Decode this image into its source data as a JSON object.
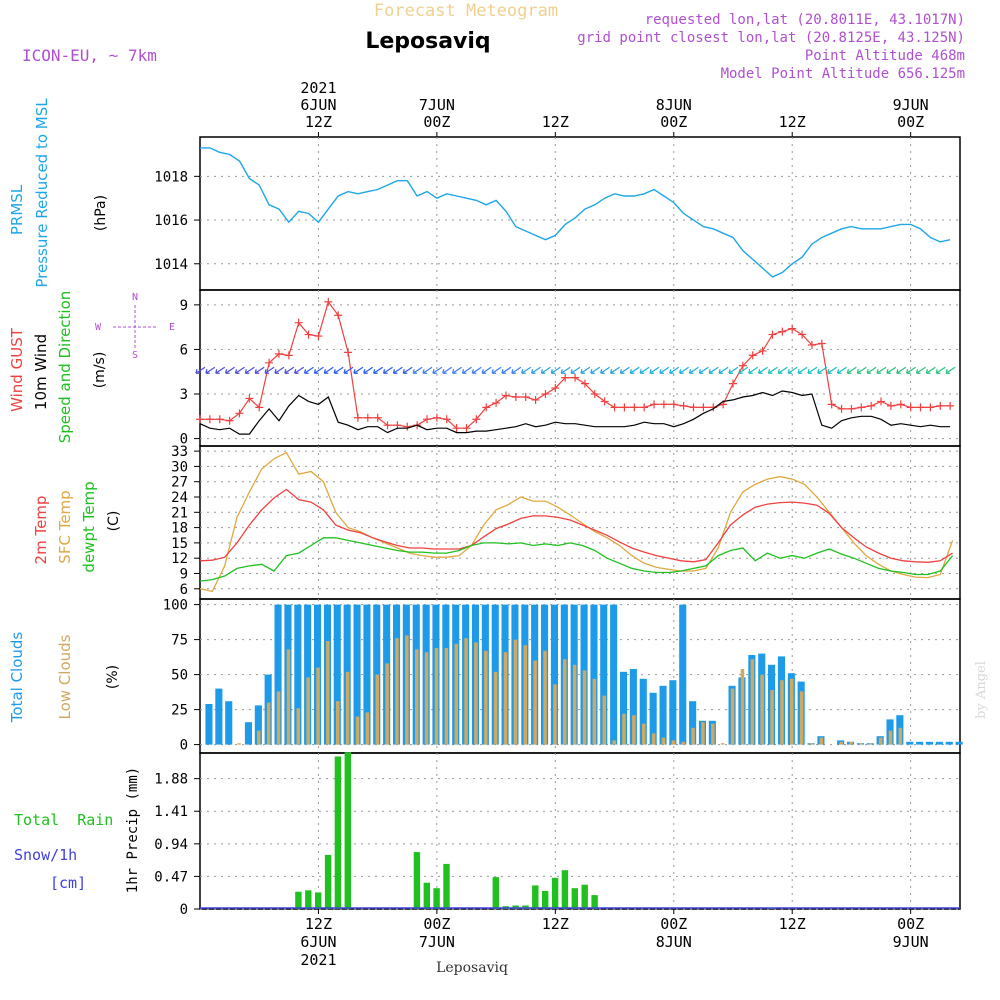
{
  "header": {
    "title": "Forecast Meteogram",
    "location": "Leposaviq",
    "model": "ICON-EU, ~ 7km",
    "requested": "requested lon,lat (20.8011E, 43.1017N)",
    "gridpoint": "grid point closest lon,lat (20.8125E, 43.125N)",
    "point_alt": "Point Altitude 468m",
    "model_alt": "Model Point Altitude 656.125m",
    "credit": "by Angel",
    "bottom_label": "Leposaviq"
  },
  "time_axis": {
    "top_labels": [
      {
        "line1": "2021",
        "line2": "6JUN",
        "line3": "12Z",
        "hour": 12
      },
      {
        "line1": "",
        "line2": "7JUN",
        "line3": "00Z",
        "hour": 24
      },
      {
        "line1": "",
        "line2": "",
        "line3": "12Z",
        "hour": 36
      },
      {
        "line1": "",
        "line2": "8JUN",
        "line3": "00Z",
        "hour": 48
      },
      {
        "line1": "",
        "line2": "",
        "line3": "12Z",
        "hour": 60
      },
      {
        "line1": "",
        "line2": "9JUN",
        "line3": "00Z",
        "hour": 72
      }
    ],
    "bottom_labels": [
      {
        "line1": "12Z",
        "line2": "6JUN",
        "line3": "2021",
        "hour": 12
      },
      {
        "line1": "00Z",
        "line2": "7JUN",
        "line3": "",
        "hour": 24
      },
      {
        "line1": "12Z",
        "line2": "",
        "line3": "",
        "hour": 36
      },
      {
        "line1": "00Z",
        "line2": "8JUN",
        "line3": "",
        "hour": 48
      },
      {
        "line1": "12Z",
        "line2": "",
        "line3": "",
        "hour": 60
      },
      {
        "line1": "00Z",
        "line2": "9JUN",
        "line3": "",
        "hour": 72
      }
    ],
    "start_hour": 0,
    "end_hour": 77
  },
  "labels": {
    "p1_a": "PRMSL",
    "p1_b": "Pressure Reduced to MSL",
    "p1_unit": "(hPa)",
    "p2_a": "Wind GUST",
    "p2_b": "10m Wind",
    "p2_c": "Speed and Direction",
    "p2_unit": "(m/s)",
    "compass_n": "N",
    "compass_s": "S",
    "compass_w": "W",
    "compass_e": "E",
    "p3_a": "2m Temp",
    "p3_b": "SFC Temp",
    "p3_c": "dewpt Temp",
    "p3_unit": "(C)",
    "p4_a": "Total Clouds",
    "p4_b": "Low Clouds",
    "p4_unit": "(%)",
    "p5_a": "Total  Rain",
    "p5_b": "Snow/1h",
    "p5_c": "[cm]",
    "p5_unit": "1hr Precip (mm)"
  },
  "colors": {
    "pressure": "#1ea6e8",
    "gust": "#f04040",
    "wind": "#000000",
    "t2m": "#f04040",
    "sfc": "#e0a840",
    "dew": "#20c020",
    "total_cloud": "#1e9be8",
    "low_cloud": "#d0a860",
    "rain": "#20c020",
    "snow": "#4040e0",
    "title": "#f0d090",
    "meta": "#b050d0"
  },
  "chart_data": [
    {
      "type": "line",
      "name": "PRMSL",
      "yticks": [
        1014,
        1016,
        1018
      ],
      "ylim": [
        1012.8,
        1019.8
      ],
      "x_hours": [
        0,
        1,
        2,
        3,
        4,
        5,
        6,
        7,
        8,
        9,
        10,
        11,
        12,
        13,
        14,
        15,
        16,
        17,
        18,
        19,
        20,
        21,
        22,
        23,
        24,
        25,
        26,
        27,
        28,
        29,
        30,
        31,
        32,
        33,
        34,
        35,
        36,
        37,
        38,
        39,
        40,
        41,
        42,
        43,
        44,
        45,
        46,
        47,
        48,
        49,
        50,
        51,
        52,
        53,
        54,
        55,
        56,
        57,
        58,
        59,
        60,
        61,
        62,
        63,
        64,
        65,
        66,
        67,
        68,
        69,
        70,
        71,
        72,
        73,
        74,
        75,
        76
      ],
      "values": [
        1019.3,
        1019.3,
        1019.1,
        1019.0,
        1018.7,
        1017.9,
        1017.6,
        1016.7,
        1016.5,
        1015.9,
        1016.4,
        1016.3,
        1015.9,
        1016.5,
        1017.1,
        1017.3,
        1017.2,
        1017.3,
        1017.4,
        1017.6,
        1017.8,
        1017.8,
        1017.1,
        1017.3,
        1017.0,
        1017.2,
        1017.1,
        1017.0,
        1016.9,
        1016.7,
        1016.9,
        1016.4,
        1015.7,
        1015.5,
        1015.3,
        1015.1,
        1015.3,
        1015.8,
        1016.1,
        1016.5,
        1016.7,
        1017.0,
        1017.2,
        1017.1,
        1017.1,
        1017.2,
        1017.4,
        1017.1,
        1016.8,
        1016.3,
        1016.0,
        1015.7,
        1015.6,
        1015.4,
        1015.2,
        1014.6,
        1014.2,
        1013.8,
        1013.4,
        1013.6,
        1014.0,
        1014.3,
        1014.9,
        1015.2,
        1015.4,
        1015.6,
        1015.7,
        1015.6,
        1015.6,
        1015.6,
        1015.7,
        1015.8,
        1015.8,
        1015.6,
        1015.2,
        1015.0,
        1015.1
      ]
    },
    {
      "type": "line",
      "name": "Wind",
      "yticks": [
        0,
        3,
        6,
        9
      ],
      "ylim": [
        -0.5,
        10
      ],
      "x_hours": [
        0,
        1,
        2,
        3,
        4,
        5,
        6,
        7,
        8,
        9,
        10,
        11,
        12,
        13,
        14,
        15,
        16,
        17,
        18,
        19,
        20,
        21,
        22,
        23,
        24,
        25,
        26,
        27,
        28,
        29,
        30,
        31,
        32,
        33,
        34,
        35,
        36,
        37,
        38,
        39,
        40,
        41,
        42,
        43,
        44,
        45,
        46,
        47,
        48,
        49,
        50,
        51,
        52,
        53,
        54,
        55,
        56,
        57,
        58,
        59,
        60,
        61,
        62,
        63,
        64,
        65,
        66,
        67,
        68,
        69,
        70,
        71,
        72,
        73,
        74,
        75,
        76
      ],
      "gust": [
        1.3,
        1.3,
        1.3,
        1.2,
        1.7,
        2.7,
        2.1,
        5.1,
        5.7,
        5.6,
        7.8,
        7.0,
        6.9,
        9.2,
        8.3,
        5.8,
        1.4,
        1.4,
        1.4,
        0.9,
        0.9,
        0.8,
        0.9,
        1.3,
        1.4,
        1.3,
        0.7,
        0.7,
        1.3,
        2.1,
        2.4,
        2.9,
        2.8,
        2.8,
        2.6,
        3.0,
        3.4,
        4.1,
        4.1,
        3.7,
        3.0,
        2.5,
        2.1,
        2.1,
        2.1,
        2.1,
        2.3,
        2.3,
        2.3,
        2.2,
        2.1,
        2.1,
        2.1,
        2.3,
        3.7,
        4.9,
        5.6,
        5.9,
        7.0,
        7.2,
        7.4,
        7.0,
        6.3,
        6.4,
        2.3,
        2.0,
        2.0,
        2.1,
        2.2,
        2.5,
        2.2,
        2.3,
        2.1,
        2.1,
        2.1,
        2.2,
        2.2
      ],
      "wind": [
        1.0,
        0.7,
        0.6,
        0.7,
        0.3,
        0.3,
        1.2,
        2.0,
        1.2,
        2.2,
        2.9,
        2.5,
        2.3,
        2.8,
        1.1,
        0.9,
        0.6,
        0.8,
        0.8,
        0.4,
        0.7,
        0.7,
        0.9,
        0.6,
        0.7,
        0.7,
        0.4,
        0.4,
        0.5,
        0.5,
        0.6,
        0.7,
        0.8,
        1.0,
        0.8,
        0.9,
        1.1,
        1.0,
        1.0,
        0.9,
        0.8,
        0.8,
        0.8,
        0.8,
        0.9,
        1.1,
        1.0,
        1.0,
        0.8,
        1.0,
        1.3,
        1.7,
        2.0,
        2.5,
        2.6,
        2.8,
        2.9,
        3.1,
        2.9,
        3.2,
        3.1,
        2.9,
        3.0,
        0.9,
        0.7,
        1.2,
        1.4,
        1.5,
        1.5,
        1.3,
        0.9,
        1.0,
        0.9,
        0.8,
        0.9,
        0.8,
        0.8
      ]
    },
    {
      "type": "line",
      "name": "Temperature",
      "yticks": [
        6,
        9,
        12,
        15,
        18,
        21,
        24,
        27,
        30,
        33
      ],
      "ylim": [
        4,
        34
      ],
      "x_hours": [
        0,
        1,
        2,
        3,
        4,
        5,
        6,
        7,
        8,
        9,
        10,
        11,
        12,
        13,
        14,
        15,
        16,
        17,
        18,
        19,
        20,
        21,
        22,
        23,
        24,
        25,
        26,
        27,
        28,
        29,
        30,
        31,
        32,
        33,
        34,
        35,
        36,
        37,
        38,
        39,
        40,
        41,
        42,
        43,
        44,
        45,
        46,
        47,
        48,
        49,
        50,
        51,
        52,
        53,
        54,
        55,
        56,
        57,
        58,
        59,
        60,
        61,
        62,
        63,
        64,
        65,
        66,
        67,
        68,
        69,
        70,
        71,
        72,
        73,
        74,
        75,
        76
      ],
      "t2m": [
        11.5,
        11.6,
        12.2,
        15.0,
        18.5,
        21.5,
        23.8,
        25.5,
        23.5,
        23.0,
        21.5,
        18.5,
        17.5,
        17.0,
        16.0,
        15.2,
        14.5,
        14.0,
        14.0,
        13.8,
        13.8,
        13.8,
        14.5,
        16.2,
        17.8,
        18.7,
        19.8,
        20.3,
        20.3,
        20.0,
        19.5,
        18.5,
        17.5,
        16.5,
        15.2,
        14.0,
        13.2,
        12.5,
        12.0,
        11.5,
        11.3,
        11.7,
        15.0,
        18.5,
        20.5,
        22.0,
        22.6,
        22.9,
        23.0,
        22.8,
        22.4,
        20.8,
        18.0,
        16.0,
        14.2,
        13.0,
        12.0,
        11.5,
        11.3,
        11.2,
        11.5,
        13.0
      ],
      "sfc": [
        6.0,
        5.5,
        10.5,
        20.0,
        25.0,
        29.5,
        31.5,
        32.7,
        28.5,
        29.0,
        27.0,
        21.0,
        18.0,
        17.2,
        16.0,
        15.0,
        14.0,
        13.0,
        12.5,
        12.2,
        12.2,
        12.5,
        14.5,
        18.5,
        21.5,
        22.5,
        24.0,
        23.2,
        23.2,
        22.0,
        20.5,
        18.8,
        17.2,
        16.0,
        14.5,
        12.5,
        11.0,
        10.2,
        9.8,
        9.5,
        9.5,
        10.0,
        14.0,
        21.0,
        25.0,
        26.5,
        27.5,
        28.0,
        27.5,
        26.5,
        24.0,
        21.0,
        18.0,
        15.0,
        12.5,
        10.8,
        9.5,
        8.8,
        8.3,
        8.2,
        8.8,
        15.5
      ],
      "dew": [
        7.5,
        7.8,
        8.5,
        10.0,
        10.5,
        10.8,
        9.5,
        12.5,
        13.0,
        14.5,
        16.0,
        16.0,
        15.5,
        15.0,
        14.5,
        14.0,
        13.5,
        13.2,
        13.2,
        13.0,
        13.0,
        13.5,
        14.5,
        15.0,
        15.0,
        14.8,
        15.0,
        14.5,
        14.8,
        14.5,
        15.0,
        14.5,
        13.5,
        12.0,
        11.0,
        10.0,
        9.5,
        9.2,
        9.2,
        9.5,
        10.0,
        10.5,
        12.5,
        13.5,
        14.0,
        11.5,
        13.0,
        12.0,
        12.5,
        12.0,
        13.0,
        13.8,
        12.8,
        12.0,
        11.0,
        10.0,
        9.5,
        9.2,
        8.8,
        8.8,
        9.5,
        12.5
      ],
      "temp_x_hours": [
        0,
        1.25,
        2.5,
        3.75,
        5,
        6.25,
        7.5,
        8.75,
        10,
        11.25,
        12.5,
        13.75,
        15,
        16.25,
        17.5,
        18.75,
        20,
        21.25,
        22.5,
        23.75,
        25,
        26.25,
        27.5,
        28.75,
        30,
        31.25,
        32.5,
        33.75,
        35,
        36.25,
        37.5,
        38.75,
        40,
        41.25,
        42.5,
        43.75,
        45,
        46.25,
        47.5,
        48.75,
        50,
        51.25,
        52.5,
        53.75,
        55,
        56.25,
        57.5,
        58.75,
        60,
        61.25,
        62.5,
        63.75,
        65,
        66.25,
        67.5,
        68.75,
        70,
        71.25,
        72.5,
        73.75,
        75,
        76.25
      ]
    },
    {
      "type": "bar",
      "name": "Clouds",
      "yticks": [
        0,
        25,
        50,
        75,
        100
      ],
      "ylim": [
        -6,
        104
      ],
      "x_hours": [
        1,
        2,
        3,
        4,
        5,
        6,
        7,
        8,
        9,
        10,
        11,
        12,
        13,
        14,
        15,
        16,
        17,
        18,
        19,
        20,
        21,
        22,
        23,
        24,
        25,
        26,
        27,
        28,
        29,
        30,
        31,
        32,
        33,
        34,
        35,
        36,
        37,
        38,
        39,
        40,
        41,
        42,
        43,
        44,
        45,
        46,
        47,
        48,
        49,
        50,
        51,
        52,
        53,
        54,
        55,
        56,
        57,
        58,
        59,
        60,
        61,
        62,
        63,
        64,
        65,
        66,
        67,
        68,
        69,
        70,
        71,
        72,
        73,
        74,
        75,
        76,
        77
      ],
      "total": [
        29,
        40,
        31,
        0,
        16,
        28,
        50,
        100,
        100,
        100,
        100,
        100,
        100,
        100,
        100,
        100,
        100,
        100,
        100,
        100,
        100,
        100,
        100,
        100,
        100,
        100,
        100,
        100,
        100,
        100,
        100,
        100,
        100,
        100,
        100,
        100,
        100,
        100,
        100,
        100,
        100,
        100,
        52,
        54,
        47,
        37,
        42,
        46,
        100,
        31,
        17,
        17,
        0,
        42,
        48,
        64,
        65,
        57,
        63,
        51,
        45,
        1,
        6,
        0,
        3,
        2,
        1,
        1,
        6,
        18,
        21,
        2,
        2,
        2,
        2,
        2,
        2
      ],
      "low": [
        0,
        0,
        0,
        1,
        0,
        10,
        30,
        38,
        68,
        26,
        48,
        55,
        74,
        31,
        52,
        20,
        23,
        50,
        58,
        76,
        78,
        68,
        66,
        69,
        69,
        72,
        76,
        73,
        67,
        52,
        66,
        75,
        71,
        60,
        67,
        43,
        61,
        57,
        53,
        47,
        35,
        3,
        22,
        21,
        15,
        8,
        5,
        3,
        2,
        12,
        16,
        15,
        1,
        40,
        54,
        61,
        50,
        39,
        46,
        47,
        38,
        1,
        5,
        0,
        2,
        2,
        1,
        1,
        5,
        10,
        12,
        0,
        0,
        0,
        0,
        0,
        0
      ]
    },
    {
      "type": "bar",
      "name": "Precip",
      "yticks": [
        0,
        0.47,
        0.94,
        1.41,
        1.88
      ],
      "ylim": [
        0,
        2.25
      ],
      "x_hours": [
        8,
        9,
        10,
        11,
        12,
        13,
        14,
        15,
        16,
        17,
        18,
        19,
        20,
        21,
        22,
        23,
        24,
        25,
        26,
        27,
        28,
        29,
        30,
        31,
        32,
        33,
        34,
        35,
        36,
        37,
        38,
        39,
        40,
        41,
        42,
        43,
        44,
        45,
        46,
        47,
        48,
        49,
        50,
        51,
        52,
        53,
        54,
        55,
        56,
        57,
        58,
        59,
        60,
        61,
        62,
        63,
        64,
        65,
        66,
        67,
        68,
        69,
        70,
        71,
        72,
        73,
        74,
        75,
        76
      ],
      "values": [
        0,
        0,
        0.25,
        0.27,
        0.24,
        0.78,
        2.2,
        2.26,
        0,
        0,
        0,
        0,
        0,
        0,
        0.82,
        0.38,
        0.3,
        0.65,
        0,
        0,
        0,
        0,
        0.46,
        0.04,
        0.05,
        0.05,
        0.34,
        0.26,
        0.45,
        0.56,
        0.3,
        0.35,
        0.2,
        0,
        0,
        0,
        0,
        0,
        0,
        0,
        0,
        0,
        0,
        0,
        0,
        0,
        0,
        0,
        0,
        0,
        0.02,
        0,
        0,
        0,
        0,
        0,
        0,
        0,
        0,
        0,
        0,
        0,
        0,
        0,
        0,
        0,
        0,
        0,
        0
      ]
    }
  ]
}
